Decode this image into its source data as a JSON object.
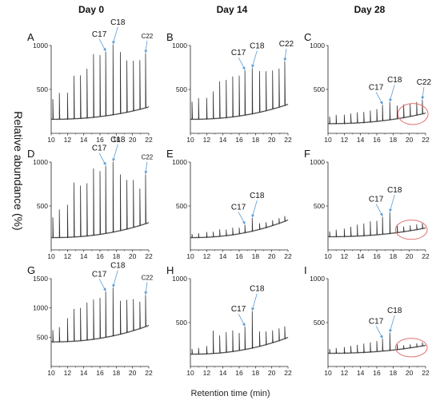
{
  "column_titles": [
    "Day 0",
    "Day 14",
    "Day 28"
  ],
  "ylabel": "Relative abundance (%)",
  "xlabel": "Retention time (min)",
  "colors": {
    "trace": "#333333",
    "arrow": "#5b9bd5",
    "circle": "#e07070"
  },
  "chart_data": [
    {
      "type": "line",
      "panel": "A",
      "xlim": [
        10,
        22
      ],
      "ylim": [
        0,
        1000
      ],
      "yticks": [
        500,
        1000
      ],
      "baseline_start": 160,
      "baseline_end": 300,
      "peaks": [
        [
          10.2,
          230
        ],
        [
          11,
          300
        ],
        [
          12,
          300
        ],
        [
          12.8,
          490
        ],
        [
          13.6,
          490
        ],
        [
          14.4,
          560
        ],
        [
          15.2,
          720
        ],
        [
          16,
          700
        ],
        [
          16.7,
          730
        ],
        [
          17.6,
          800
        ],
        [
          18.5,
          700
        ],
        [
          19.3,
          590
        ],
        [
          20.1,
          570
        ],
        [
          20.9,
          560
        ],
        [
          21.6,
          620
        ]
      ],
      "annotations": [
        {
          "text": "C17",
          "x": 16.7
        },
        {
          "text": "C18",
          "x": 17.6
        },
        {
          "text": "C22",
          "x": 21.6
        }
      ]
    },
    {
      "type": "line",
      "panel": "B",
      "xlim": [
        10,
        22
      ],
      "ylim": [
        0,
        1000
      ],
      "yticks": [
        500,
        1000
      ],
      "baseline_start": 160,
      "baseline_end": 330,
      "peaks": [
        [
          10.2,
          200
        ],
        [
          11,
          240
        ],
        [
          12,
          240
        ],
        [
          12.8,
          310
        ],
        [
          13.6,
          420
        ],
        [
          14.4,
          430
        ],
        [
          15.2,
          460
        ],
        [
          16,
          460
        ],
        [
          16.7,
          510
        ],
        [
          17.6,
          520
        ],
        [
          18.5,
          470
        ],
        [
          19.3,
          450
        ],
        [
          20.1,
          440
        ],
        [
          20.9,
          440
        ],
        [
          21.6,
          500
        ]
      ],
      "annotations": [
        {
          "text": "C17",
          "x": 16.7
        },
        {
          "text": "C18",
          "x": 17.6
        },
        {
          "text": "C22",
          "x": 21.6
        }
      ],
      "big_labels": true
    },
    {
      "type": "line",
      "panel": "C",
      "xlim": [
        10,
        22
      ],
      "ylim": [
        0,
        1000
      ],
      "yticks": [
        500,
        1000
      ],
      "baseline_start": 110,
      "baseline_end": 230,
      "peaks": [
        [
          10.2,
          80
        ],
        [
          11,
          100
        ],
        [
          12,
          100
        ],
        [
          12.8,
          110
        ],
        [
          13.6,
          120
        ],
        [
          14.4,
          120
        ],
        [
          15.2,
          130
        ],
        [
          16,
          140
        ],
        [
          16.7,
          180
        ],
        [
          17.6,
          200
        ],
        [
          18.5,
          150
        ],
        [
          19.3,
          150
        ],
        [
          20.1,
          150
        ],
        [
          20.9,
          150
        ],
        [
          21.6,
          160
        ]
      ],
      "annotations": [
        {
          "text": "C17",
          "x": 16.7
        },
        {
          "text": "C18",
          "x": 17.6
        },
        {
          "text": "C22",
          "x": 21.6
        }
      ],
      "circle": [
        18.6,
        22.3,
        100,
        340
      ],
      "big_labels": true
    },
    {
      "type": "line",
      "panel": "D",
      "xlim": [
        10,
        22
      ],
      "ylim": [
        0,
        1000
      ],
      "yticks": [
        500,
        1000
      ],
      "baseline_start": 140,
      "baseline_end": 310,
      "peaks": [
        [
          10.2,
          230
        ],
        [
          11,
          320
        ],
        [
          12,
          370
        ],
        [
          12.8,
          620
        ],
        [
          13.6,
          580
        ],
        [
          14.4,
          600
        ],
        [
          15.2,
          760
        ],
        [
          16,
          720
        ],
        [
          16.7,
          770
        ],
        [
          17.6,
          800
        ],
        [
          18.5,
          640
        ],
        [
          19.3,
          560
        ],
        [
          20.1,
          540
        ],
        [
          20.9,
          420
        ],
        [
          21.6,
          560
        ]
      ],
      "annotations": [
        {
          "text": "C17",
          "x": 16.7
        },
        {
          "text": "C18",
          "x": 17.6
        },
        {
          "text": "C22",
          "x": 21.6
        }
      ]
    },
    {
      "type": "line",
      "panel": "E",
      "xlim": [
        10,
        22
      ],
      "ylim": [
        0,
        1000
      ],
      "yticks": [
        500,
        1000
      ],
      "baseline_start": 140,
      "baseline_end": 340,
      "peaks": [
        [
          10.2,
          40
        ],
        [
          11,
          50
        ],
        [
          12,
          60
        ],
        [
          12.8,
          60
        ],
        [
          13.6,
          80
        ],
        [
          14.4,
          70
        ],
        [
          15.2,
          80
        ],
        [
          16,
          70
        ],
        [
          16.7,
          90
        ],
        [
          17.6,
          150
        ],
        [
          18.5,
          70
        ],
        [
          19.3,
          60
        ],
        [
          20.1,
          60
        ],
        [
          20.9,
          60
        ],
        [
          21.6,
          60
        ]
      ],
      "annotations": [
        {
          "text": "C17",
          "x": 16.7
        },
        {
          "text": "C18",
          "x": 17.6
        }
      ],
      "big_labels": true
    },
    {
      "type": "line",
      "panel": "F",
      "xlim": [
        10,
        22
      ],
      "ylim": [
        0,
        1000
      ],
      "yticks": [
        500,
        1000
      ],
      "baseline_start": 150,
      "baseline_end": 250,
      "peaks": [
        [
          10.2,
          60
        ],
        [
          11,
          80
        ],
        [
          12,
          90
        ],
        [
          12.8,
          110
        ],
        [
          13.6,
          130
        ],
        [
          14.4,
          140
        ],
        [
          15.2,
          160
        ],
        [
          16,
          160
        ],
        [
          16.7,
          200
        ],
        [
          17.6,
          240
        ],
        [
          18.5,
          90
        ],
        [
          19.3,
          60
        ],
        [
          20.1,
          60
        ],
        [
          20.9,
          60
        ],
        [
          21.6,
          60
        ]
      ],
      "annotations": [
        {
          "text": "C17",
          "x": 16.7
        },
        {
          "text": "C18",
          "x": 17.6
        }
      ],
      "circle": [
        18.3,
        22.2,
        120,
        340
      ],
      "big_labels": true
    },
    {
      "type": "line",
      "panel": "G",
      "xlim": [
        10,
        22
      ],
      "ylim": [
        0,
        1500
      ],
      "yticks": [
        500,
        1000,
        1500
      ],
      "baseline_start": 420,
      "baseline_end": 700,
      "peaks": [
        [
          10.2,
          200
        ],
        [
          11,
          250
        ],
        [
          12,
          400
        ],
        [
          12.8,
          550
        ],
        [
          13.6,
          560
        ],
        [
          14.4,
          640
        ],
        [
          15.2,
          680
        ],
        [
          16,
          690
        ],
        [
          16.7,
          780
        ],
        [
          17.6,
          820
        ],
        [
          18.5,
          570
        ],
        [
          19.3,
          560
        ],
        [
          20.1,
          540
        ],
        [
          20.9,
          460
        ],
        [
          21.6,
          540
        ]
      ],
      "annotations": [
        {
          "text": "C17",
          "x": 16.7
        },
        {
          "text": "C18",
          "x": 17.6
        },
        {
          "text": "C22",
          "x": 21.6
        }
      ]
    },
    {
      "type": "line",
      "panel": "H",
      "xlim": [
        10,
        22
      ],
      "ylim": [
        0,
        1000
      ],
      "yticks": [
        500,
        1000
      ],
      "baseline_start": 140,
      "baseline_end": 330,
      "peaks": [
        [
          10.2,
          60
        ],
        [
          11,
          70
        ],
        [
          12,
          90
        ],
        [
          12.8,
          260
        ],
        [
          13.6,
          200
        ],
        [
          14.4,
          230
        ],
        [
          15.2,
          240
        ],
        [
          16,
          200
        ],
        [
          16.7,
          260
        ],
        [
          17.6,
          420
        ],
        [
          18.5,
          170
        ],
        [
          19.3,
          150
        ],
        [
          20.1,
          140
        ],
        [
          20.9,
          140
        ],
        [
          21.6,
          140
        ]
      ],
      "annotations": [
        {
          "text": "C17",
          "x": 16.7
        },
        {
          "text": "C18",
          "x": 17.6
        }
      ],
      "big_labels": true
    },
    {
      "type": "line",
      "panel": "I",
      "xlim": [
        10,
        22
      ],
      "ylim": [
        0,
        1000
      ],
      "yticks": [
        500,
        1000
      ],
      "baseline_start": 150,
      "baseline_end": 240,
      "peaks": [
        [
          10.2,
          50
        ],
        [
          11,
          60
        ],
        [
          12,
          70
        ],
        [
          12.8,
          80
        ],
        [
          13.6,
          90
        ],
        [
          14.4,
          100
        ],
        [
          15.2,
          110
        ],
        [
          16,
          120
        ],
        [
          16.7,
          140
        ],
        [
          17.6,
          200
        ],
        [
          18.5,
          60
        ],
        [
          19.3,
          40
        ],
        [
          20.1,
          40
        ],
        [
          20.9,
          40
        ],
        [
          21.6,
          40
        ]
      ],
      "annotations": [
        {
          "text": "C17",
          "x": 16.7
        },
        {
          "text": "C18",
          "x": 17.6
        }
      ],
      "circle": [
        18.3,
        22.2,
        110,
        320
      ],
      "big_labels": true
    }
  ]
}
